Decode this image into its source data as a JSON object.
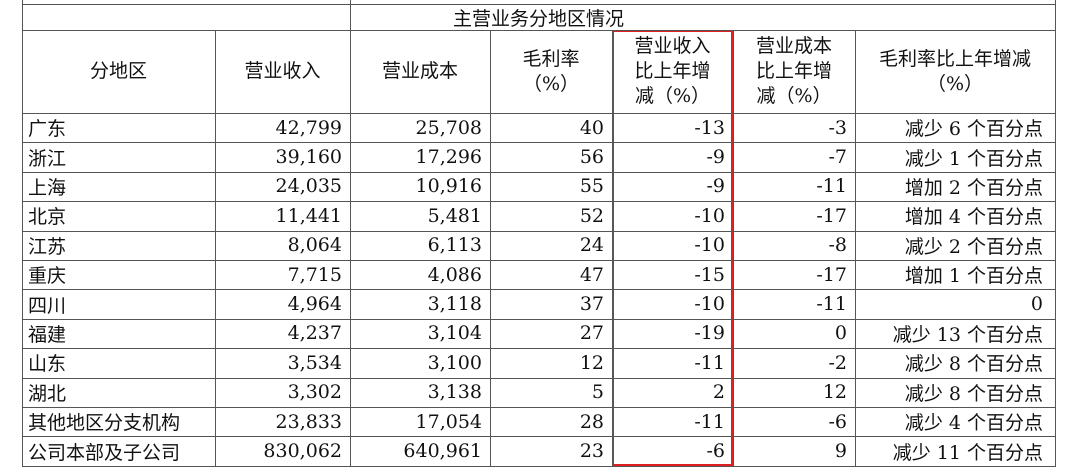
{
  "table": {
    "title": "主营业务分地区情况",
    "header": [
      [
        "分地区"
      ],
      [
        "营业收入"
      ],
      [
        "营业成本"
      ],
      [
        "毛利率",
        "（%）"
      ],
      [
        "营业收入",
        "比上年增",
        "减（%）"
      ],
      [
        "营业成本",
        "比上年增",
        "减（%）"
      ],
      [
        "毛利率比上年增减",
        "（%）"
      ]
    ],
    "rows": [
      [
        "广东",
        "42,799",
        "25,708",
        "40",
        "-13",
        "-3",
        "减少 6 个百分点"
      ],
      [
        "浙江",
        "39,160",
        "17,296",
        "56",
        "-9",
        "-7",
        "减少 1 个百分点"
      ],
      [
        "上海",
        "24,035",
        "10,916",
        "55",
        "-9",
        "-11",
        "增加 2 个百分点"
      ],
      [
        "北京",
        "11,441",
        "5,481",
        "52",
        "-10",
        "-17",
        "增加 4 个百分点"
      ],
      [
        "江苏",
        "8,064",
        "6,113",
        "24",
        "-10",
        "-8",
        "减少 2 个百分点"
      ],
      [
        "重庆",
        "7,715",
        "4,086",
        "47",
        "-15",
        "-17",
        "增加 1 个百分点"
      ],
      [
        "四川",
        "4,964",
        "3,118",
        "37",
        "-10",
        "-11",
        "0"
      ],
      [
        "福建",
        "4,237",
        "3,104",
        "27",
        "-19",
        "0",
        "减少 13 个百分点"
      ],
      [
        "山东",
        "3,534",
        "3,100",
        "12",
        "-11",
        "-2",
        "减少 8 个百分点"
      ],
      [
        "湖北",
        "3,302",
        "3,138",
        "5",
        "2",
        "12",
        "减少 8 个百分点"
      ],
      [
        "其他地区分支机构",
        "23,833",
        "17,054",
        "28",
        "-11",
        "-6",
        "减少 4 个百分点"
      ],
      [
        "公司本部及子公司",
        "830,062",
        "640,961",
        "23",
        "-6",
        "9",
        "减少 11 个百分点"
      ]
    ]
  }
}
